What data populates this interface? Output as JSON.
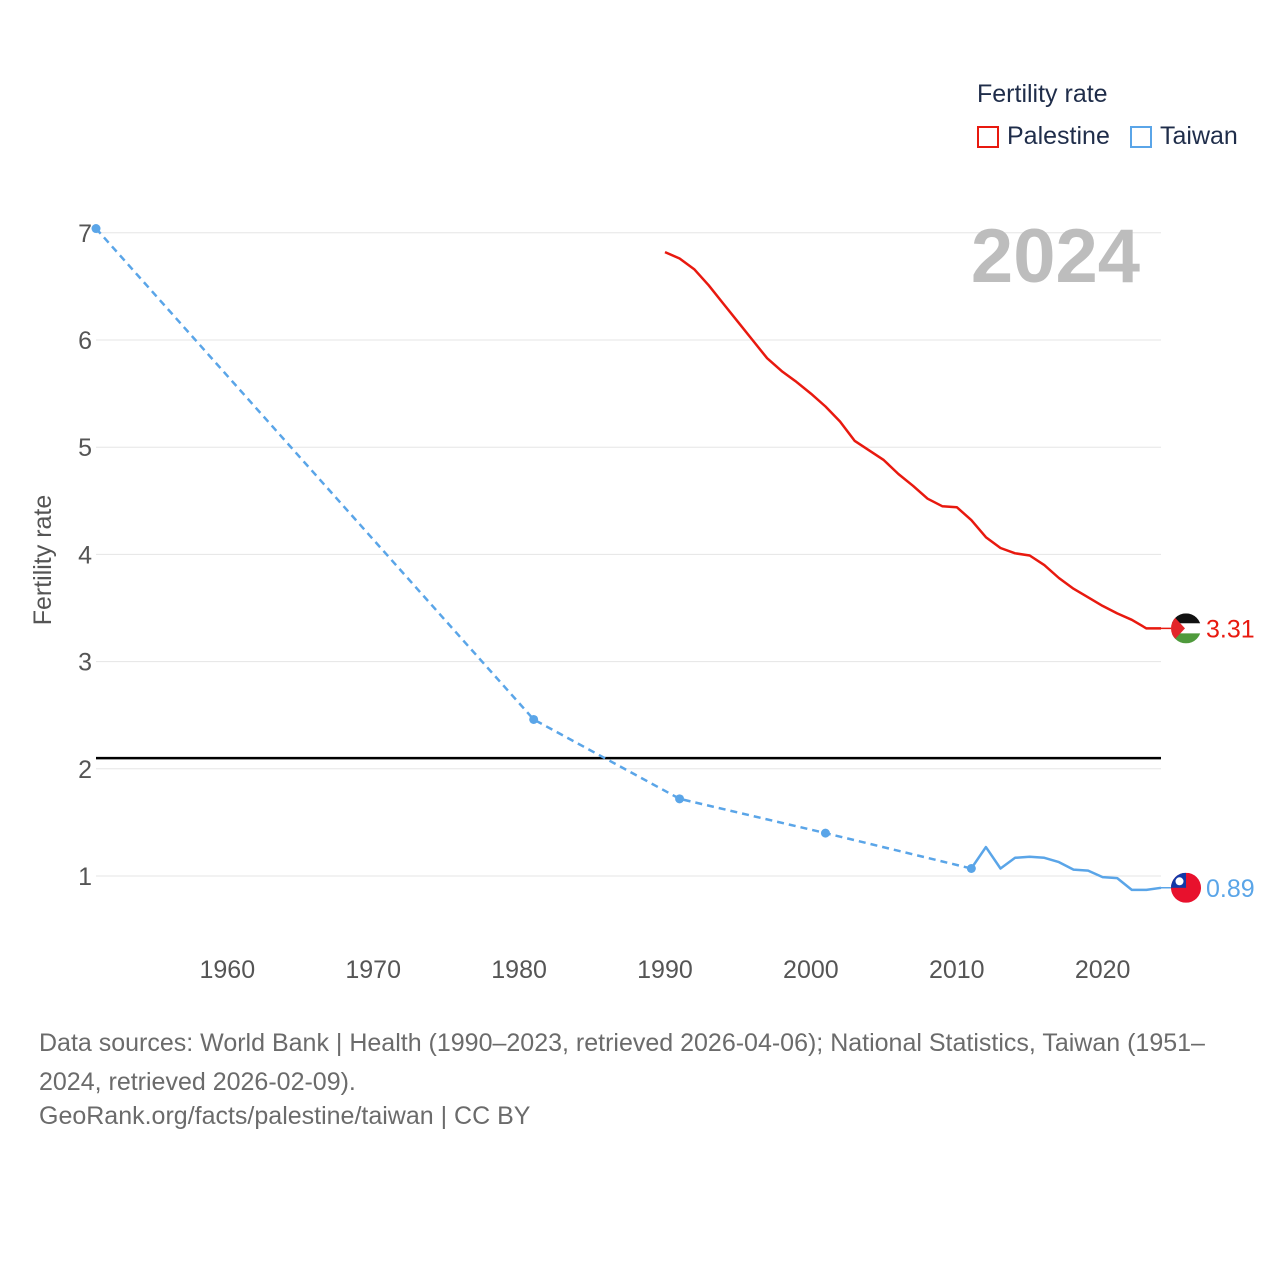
{
  "legend": {
    "title": "Fertility rate",
    "items": [
      {
        "label": "Palestine",
        "color": "#e8190f"
      },
      {
        "label": "Taiwan",
        "color": "#5aa5e8"
      }
    ]
  },
  "footer": {
    "sources": "Data sources: World Bank | Health (1990–2023, retrieved 2026-04-06); National Statistics, Taiwan (1951–2024, retrieved 2026-02-09).",
    "credit": "GeoRank.org/facts/palestine/taiwan | CC BY"
  },
  "chart_data": {
    "type": "line",
    "title": "",
    "year_label": "2024",
    "ylabel": "Fertility rate",
    "xlabel": "",
    "xlim": [
      1951,
      2024
    ],
    "ylim": [
      0.6,
      7.1
    ],
    "x_ticks": [
      1960,
      1970,
      1980,
      1990,
      2000,
      2010,
      2020
    ],
    "y_ticks": [
      1,
      2,
      3,
      4,
      5,
      6,
      7
    ],
    "reference_line": {
      "y": 2.1,
      "color": "#000000"
    },
    "series": [
      {
        "name": "Palestine",
        "color": "#e8190f",
        "end_label": "3.31",
        "flag": "palestine-flag",
        "points": [
          [
            1990,
            6.82
          ],
          [
            1991,
            6.76
          ],
          [
            1992,
            6.66
          ],
          [
            1993,
            6.51
          ],
          [
            1994,
            6.34
          ],
          [
            1995,
            6.17
          ],
          [
            1996,
            6.0
          ],
          [
            1997,
            5.83
          ],
          [
            1998,
            5.71
          ],
          [
            1999,
            5.61
          ],
          [
            2000,
            5.5
          ],
          [
            2001,
            5.38
          ],
          [
            2002,
            5.24
          ],
          [
            2003,
            5.06
          ],
          [
            2004,
            4.97
          ],
          [
            2005,
            4.88
          ],
          [
            2006,
            4.75
          ],
          [
            2007,
            4.64
          ],
          [
            2008,
            4.52
          ],
          [
            2009,
            4.45
          ],
          [
            2010,
            4.44
          ],
          [
            2011,
            4.32
          ],
          [
            2012,
            4.16
          ],
          [
            2013,
            4.06
          ],
          [
            2014,
            4.01
          ],
          [
            2015,
            3.99
          ],
          [
            2016,
            3.9
          ],
          [
            2017,
            3.78
          ],
          [
            2018,
            3.68
          ],
          [
            2019,
            3.6
          ],
          [
            2020,
            3.52
          ],
          [
            2021,
            3.45
          ],
          [
            2022,
            3.39
          ],
          [
            2023,
            3.31
          ],
          [
            2024,
            3.31
          ]
        ]
      },
      {
        "name": "Taiwan",
        "color": "#5aa5e8",
        "end_label": "0.89",
        "flag": "taiwan-flag",
        "dashed_points": [
          [
            1951,
            7.04
          ],
          [
            1981,
            2.46
          ],
          [
            1991,
            1.72
          ],
          [
            2001,
            1.4
          ],
          [
            2011,
            1.07
          ]
        ],
        "points": [
          [
            2011,
            1.07
          ],
          [
            2012,
            1.27
          ],
          [
            2013,
            1.07
          ],
          [
            2014,
            1.17
          ],
          [
            2015,
            1.18
          ],
          [
            2016,
            1.17
          ],
          [
            2017,
            1.13
          ],
          [
            2018,
            1.06
          ],
          [
            2019,
            1.05
          ],
          [
            2020,
            0.99
          ],
          [
            2021,
            0.98
          ],
          [
            2022,
            0.87
          ],
          [
            2023,
            0.87
          ],
          [
            2024,
            0.89
          ]
        ]
      }
    ]
  }
}
